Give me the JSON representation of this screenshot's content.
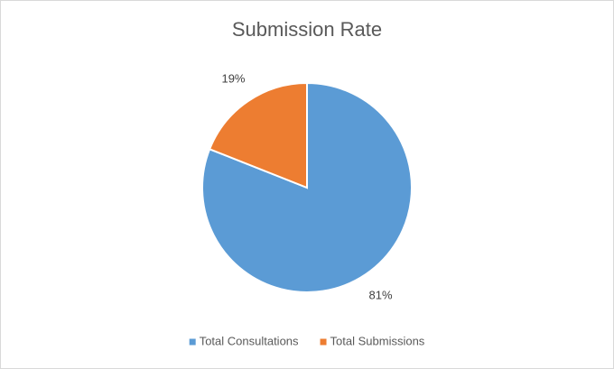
{
  "chart_data": {
    "type": "pie",
    "title": "Submission Rate",
    "categories": [
      "Total Consultations",
      "Total Submissions"
    ],
    "values": [
      81,
      19
    ],
    "value_labels": [
      "81%",
      "19%"
    ],
    "colors": [
      "#5b9bd5",
      "#ed7d31"
    ],
    "legend": "bottom"
  }
}
